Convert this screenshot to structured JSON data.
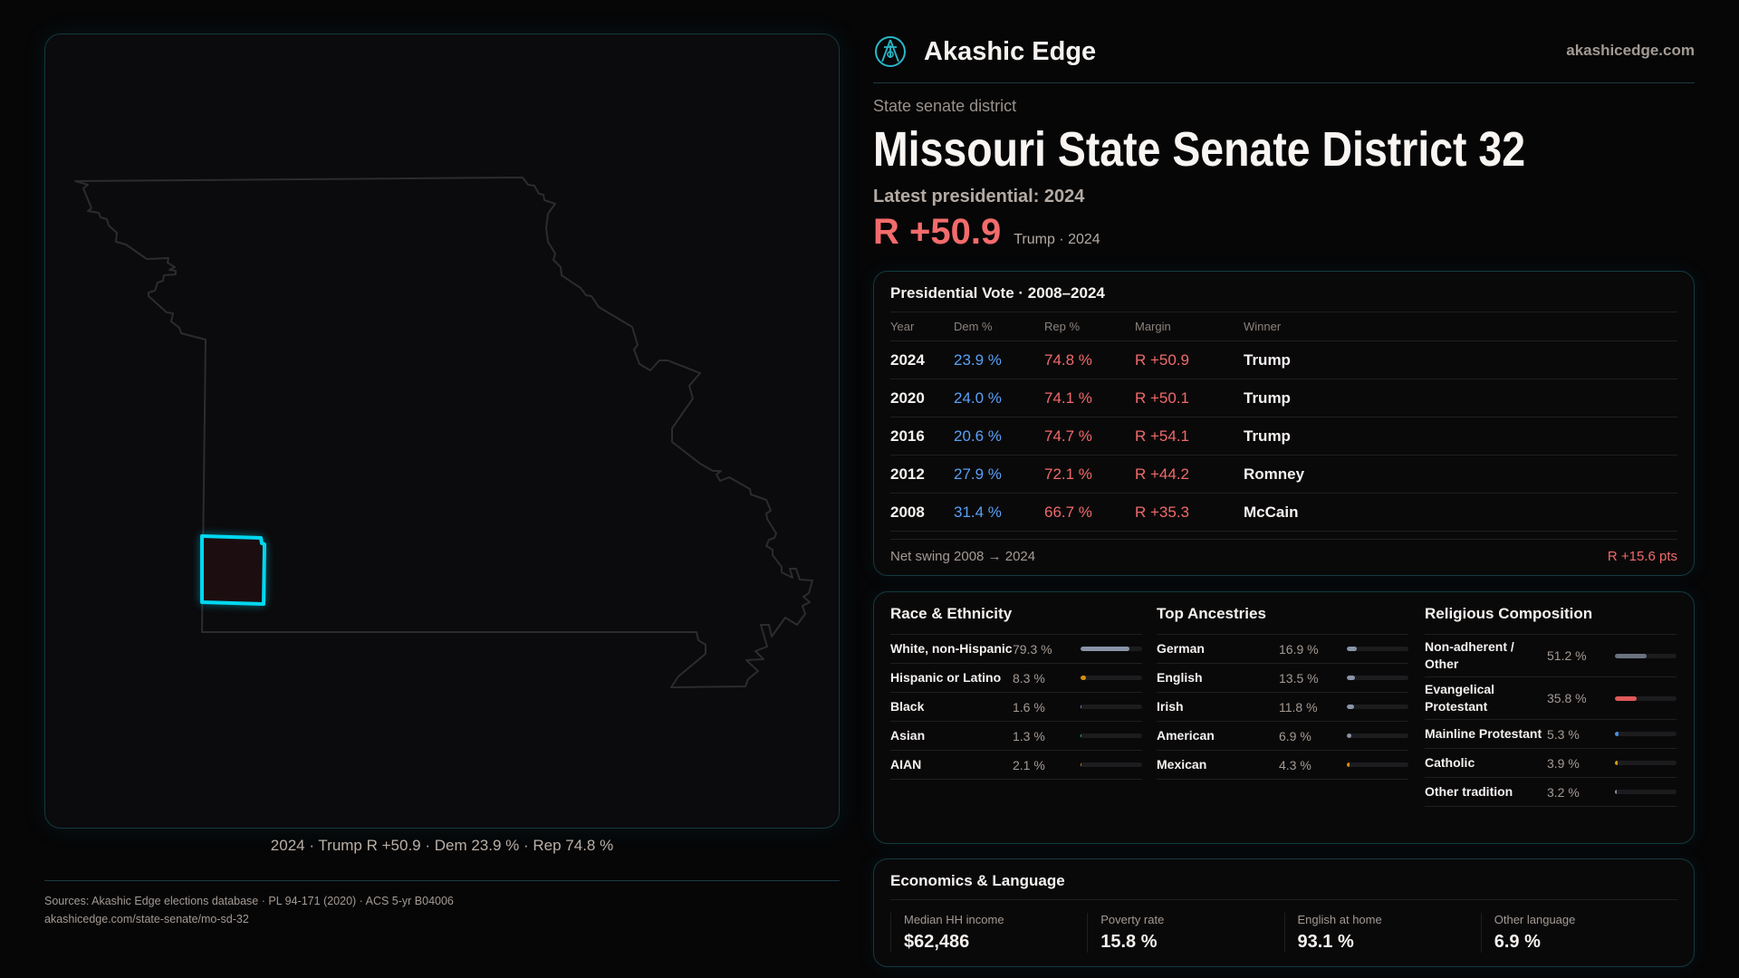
{
  "brand": {
    "name": "Akashic Edge",
    "site": "akashicedge.com",
    "logo_icon": "compass-emblem-icon"
  },
  "header": {
    "kicker": "State senate district",
    "title": "Missouri State Senate District 32",
    "latest": "Latest presidential: 2024",
    "margin": "R +50.9",
    "margin_sub": "Trump · 2024"
  },
  "map": {
    "caption": "2024 · Trump R +50.9 · Dem 23.9 % · Rep 74.8 %",
    "highlight_color": "#00d8f0",
    "district_fill": "#1c0e10"
  },
  "presidential": {
    "title": "Presidential Vote · 2008–2024",
    "columns": [
      "Year",
      "Dem %",
      "Rep %",
      "Margin",
      "Winner"
    ],
    "rows": [
      {
        "year": "2024",
        "dem": "23.9 %",
        "rep": "74.8 %",
        "margin": "R +50.9",
        "winner": "Trump"
      },
      {
        "year": "2020",
        "dem": "24.0 %",
        "rep": "74.1 %",
        "margin": "R +50.1",
        "winner": "Trump"
      },
      {
        "year": "2016",
        "dem": "20.6 %",
        "rep": "74.7 %",
        "margin": "R +54.1",
        "winner": "Trump"
      },
      {
        "year": "2012",
        "dem": "27.9 %",
        "rep": "72.1 %",
        "margin": "R +44.2",
        "winner": "Romney"
      },
      {
        "year": "2008",
        "dem": "31.4 %",
        "rep": "66.7 %",
        "margin": "R +35.3",
        "winner": "McCain"
      }
    ],
    "swing_label": "Net swing 2008 → 2024",
    "swing_value": "R +15.6 pts"
  },
  "race": {
    "title": "Race & Ethnicity",
    "items": [
      {
        "name": "White, non-Hispanic",
        "pct": "79.3 %",
        "value": 79.3,
        "color": "#8a94a8"
      },
      {
        "name": "Hispanic or Latino",
        "pct": "8.3 %",
        "value": 8.3,
        "color": "#d4900f"
      },
      {
        "name": "Black",
        "pct": "1.6 %",
        "value": 1.6,
        "color": "#8b7fd4"
      },
      {
        "name": "Asian",
        "pct": "1.3 %",
        "value": 1.3,
        "color": "#2bb58a"
      },
      {
        "name": "AIAN",
        "pct": "2.1 %",
        "value": 2.1,
        "color": "#c97a1a"
      }
    ]
  },
  "ancestry": {
    "title": "Top Ancestries",
    "items": [
      {
        "name": "German",
        "pct": "16.9 %",
        "value": 16.9,
        "color": "#8a94a8"
      },
      {
        "name": "English",
        "pct": "13.5 %",
        "value": 13.5,
        "color": "#8a94a8"
      },
      {
        "name": "Irish",
        "pct": "11.8 %",
        "value": 11.8,
        "color": "#8a94a8"
      },
      {
        "name": "American",
        "pct": "6.9 %",
        "value": 6.9,
        "color": "#8a94a8"
      },
      {
        "name": "Mexican",
        "pct": "4.3 %",
        "value": 4.3,
        "color": "#d4900f"
      }
    ]
  },
  "religion": {
    "title": "Religious Composition",
    "items": [
      {
        "name": "Non-adherent / Other",
        "pct": "51.2 %",
        "value": 51.2,
        "color": "#6b7280"
      },
      {
        "name": "Evangelical Protestant",
        "pct": "35.8 %",
        "value": 35.8,
        "color": "#e05a5a"
      },
      {
        "name": "Mainline Protestant",
        "pct": "5.3 %",
        "value": 5.3,
        "color": "#4a8fe0"
      },
      {
        "name": "Catholic",
        "pct": "3.9 %",
        "value": 3.9,
        "color": "#d4a017"
      },
      {
        "name": "Other tradition",
        "pct": "3.2 %",
        "value": 3.2,
        "color": "#8a94a8"
      }
    ]
  },
  "economics": {
    "title": "Economics & Language",
    "stats": [
      {
        "label": "Median HH income",
        "value": "$62,486"
      },
      {
        "label": "Poverty rate",
        "value": "15.8 %"
      },
      {
        "label": "English at home",
        "value": "93.1 %"
      },
      {
        "label": "Other language",
        "value": "6.9 %"
      }
    ]
  },
  "footer": {
    "sources": "Sources: Akashic Edge elections database · PL 94-171 (2020) · ACS 5-yr B04006",
    "url": "akashicedge.com/state-senate/mo-sd-32"
  }
}
